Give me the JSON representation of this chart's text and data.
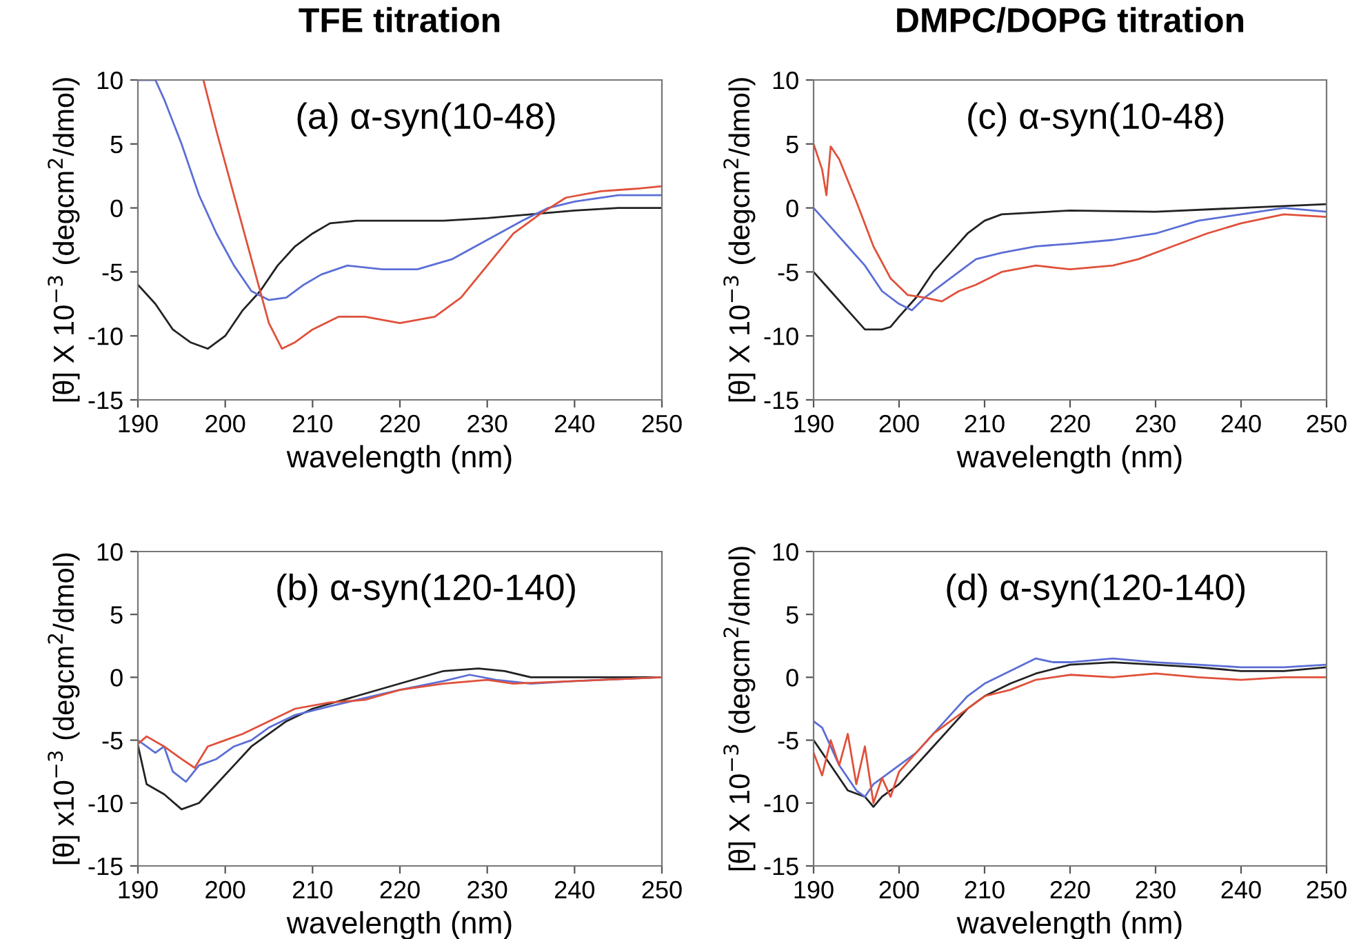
{
  "chart_data": [
    {
      "type": "line",
      "title": "TFE titration",
      "annotations": [
        "(a) α-syn(10-48)"
      ],
      "xlabel": "wavelength (nm)",
      "ylabel": "[θ] X 10$^{−3}$ (degcm$^{2}$/dmol)",
      "xlim": [
        190,
        250
      ],
      "ylim": [
        -15,
        10
      ],
      "xticks": [
        190,
        200,
        210,
        220,
        230,
        240,
        250
      ],
      "yticks": [
        -15,
        -10,
        -5,
        0,
        5,
        10
      ],
      "grid": false,
      "legend": false,
      "series": [
        {
          "color": "#222222",
          "x": [
            190,
            192,
            194,
            196,
            198,
            200,
            202,
            204,
            206,
            208,
            210,
            212,
            215,
            220,
            225,
            230,
            235,
            240,
            245,
            250
          ],
          "values": [
            -6,
            -7.5,
            -9.5,
            -10.5,
            -11,
            -10,
            -8,
            -6.5,
            -4.5,
            -3,
            -2,
            -1.2,
            -1,
            -1,
            -1,
            -0.8,
            -0.5,
            -0.2,
            0,
            0
          ]
        },
        {
          "color": "#5b6ed6",
          "x": [
            190,
            192,
            193,
            195,
            197,
            199,
            201,
            203,
            205,
            207,
            209,
            211,
            214,
            218,
            222,
            226,
            230,
            234,
            237,
            240,
            245,
            250
          ],
          "values": [
            10,
            10,
            8.5,
            5,
            1,
            -2,
            -4.5,
            -6.5,
            -7.2,
            -7,
            -6,
            -5.2,
            -4.5,
            -4.8,
            -4.8,
            -4,
            -2.5,
            -1,
            0,
            0.5,
            1,
            1
          ]
        },
        {
          "color": "#e0503a",
          "x": [
            197.5,
            199,
            201,
            203,
            205,
            206.5,
            208,
            210,
            213,
            216,
            220,
            224,
            227,
            230,
            233,
            236,
            239,
            243,
            247,
            250
          ],
          "values": [
            10,
            6,
            1,
            -4,
            -9,
            -11,
            -10.5,
            -9.5,
            -8.5,
            -8.5,
            -9,
            -8.5,
            -7,
            -4.5,
            -2,
            -0.5,
            0.8,
            1.3,
            1.5,
            1.7
          ]
        }
      ]
    },
    {
      "type": "line",
      "title": "DMPC/DOPG titration",
      "annotations": [
        "(c) α-syn(10-48)"
      ],
      "xlabel": "wavelength (nm)",
      "ylabel": "[θ] X 10$^{−3}$ (degcm$^{2}$/dmol)",
      "xlim": [
        190,
        250
      ],
      "ylim": [
        -15,
        10
      ],
      "xticks": [
        190,
        200,
        210,
        220,
        230,
        240,
        250
      ],
      "yticks": [
        -15,
        -10,
        -5,
        0,
        5,
        10
      ],
      "grid": false,
      "legend": false,
      "series": [
        {
          "color": "#222222",
          "x": [
            190,
            192,
            194,
            196,
            198,
            199,
            200,
            202,
            204,
            206,
            208,
            210,
            212,
            220,
            230,
            240,
            250
          ],
          "values": [
            -5,
            -6.5,
            -8,
            -9.5,
            -9.5,
            -9.3,
            -8.5,
            -7,
            -5,
            -3.5,
            -2,
            -1,
            -0.5,
            -0.2,
            -0.3,
            0,
            0.3
          ]
        },
        {
          "color": "#5b6ed6",
          "x": [
            190,
            192,
            194,
            196,
            198,
            200,
            201.5,
            203,
            205,
            207,
            209,
            212,
            216,
            220,
            225,
            230,
            235,
            240,
            245,
            250
          ],
          "values": [
            0,
            -1.5,
            -3,
            -4.5,
            -6.5,
            -7.5,
            -8,
            -7,
            -6,
            -5,
            -4,
            -3.5,
            -3,
            -2.8,
            -2.5,
            -2,
            -1,
            -0.5,
            0,
            -0.3
          ]
        },
        {
          "color": "#e0503a",
          "x": [
            190,
            191,
            191.5,
            192,
            193,
            195,
            197,
            199,
            201,
            203,
            205,
            207,
            209,
            212,
            216,
            220,
            225,
            228,
            232,
            236,
            240,
            245,
            250
          ],
          "values": [
            5,
            3,
            1,
            4.8,
            3.8,
            0.5,
            -3,
            -5.5,
            -6.8,
            -7,
            -7.3,
            -6.5,
            -6,
            -5,
            -4.5,
            -4.8,
            -4.5,
            -4,
            -3,
            -2,
            -1.2,
            -0.5,
            -0.7
          ]
        }
      ]
    },
    {
      "type": "line",
      "annotations": [
        "(b) α-syn(120-140)"
      ],
      "xlabel": "wavelength (nm)",
      "ylabel": "[θ] x10$^{−3}$ (degcm$^{2}$/dmol)",
      "xlim": [
        190,
        250
      ],
      "ylim": [
        -15,
        10
      ],
      "xticks": [
        190,
        200,
        210,
        220,
        230,
        240,
        250
      ],
      "yticks": [
        -15,
        -10,
        -5,
        0,
        5,
        10
      ],
      "grid": false,
      "legend": false,
      "series": [
        {
          "color": "#222222",
          "x": [
            190,
            191,
            193,
            195,
            197,
            199,
            201,
            203,
            205,
            207,
            210,
            215,
            220,
            225,
            229,
            232,
            235,
            240,
            250
          ],
          "values": [
            -5.4,
            -8.5,
            -9.3,
            -10.5,
            -10,
            -8.5,
            -7,
            -5.5,
            -4.5,
            -3.5,
            -2.5,
            -1.5,
            -0.5,
            0.5,
            0.7,
            0.5,
            0,
            0,
            0
          ]
        },
        {
          "color": "#5b6ed6",
          "x": [
            190,
            192,
            193,
            194,
            195.5,
            197,
            199,
            201,
            203,
            205,
            208,
            212,
            220,
            225,
            228,
            231,
            235,
            240,
            250
          ],
          "values": [
            -5,
            -6,
            -5.5,
            -7.5,
            -8.3,
            -7,
            -6.5,
            -5.5,
            -5,
            -4,
            -3,
            -2.3,
            -1,
            -0.3,
            0.2,
            -0.2,
            -0.5,
            -0.3,
            0
          ]
        },
        {
          "color": "#e0503a",
          "x": [
            190,
            191,
            193,
            195,
            196.5,
            198,
            200,
            202,
            205,
            208,
            212,
            216,
            220,
            225,
            230,
            233,
            240,
            250
          ],
          "values": [
            -5.3,
            -4.7,
            -5.5,
            -6.5,
            -7.2,
            -5.5,
            -5,
            -4.5,
            -3.5,
            -2.5,
            -2,
            -1.8,
            -1,
            -0.5,
            -0.2,
            -0.5,
            -0.3,
            0
          ]
        }
      ]
    },
    {
      "type": "line",
      "annotations": [
        "(d) α-syn(120-140)"
      ],
      "xlabel": "wavelength (nm)",
      "ylabel": "[θ] X 10$^{−3}$ (degcm$^{2}$/dmol)",
      "xlim": [
        190,
        250
      ],
      "ylim": [
        -15,
        10
      ],
      "xticks": [
        190,
        200,
        210,
        220,
        230,
        240,
        250
      ],
      "yticks": [
        -15,
        -10,
        -5,
        0,
        5,
        10
      ],
      "grid": false,
      "legend": false,
      "series": [
        {
          "color": "#222222",
          "x": [
            190,
            192,
            194,
            196,
            197,
            198,
            200,
            202,
            204,
            206,
            208,
            210,
            213,
            216,
            220,
            225,
            230,
            235,
            240,
            245,
            250
          ],
          "values": [
            -5,
            -7,
            -9,
            -9.5,
            -10.3,
            -9.5,
            -8.5,
            -7,
            -5.5,
            -4,
            -2.5,
            -1.5,
            -0.5,
            0.3,
            1,
            1.2,
            1,
            0.8,
            0.5,
            0.5,
            0.8
          ]
        },
        {
          "color": "#5b6ed6",
          "x": [
            190,
            191,
            193,
            195,
            196,
            197,
            198,
            200,
            202,
            204,
            206,
            208,
            210,
            213,
            216,
            218,
            220,
            225,
            230,
            235,
            240,
            245,
            250
          ],
          "values": [
            -3.5,
            -4,
            -7,
            -9,
            -9.5,
            -8.5,
            -8,
            -7,
            -6,
            -4.5,
            -3,
            -1.5,
            -0.5,
            0.5,
            1.5,
            1.2,
            1.2,
            1.5,
            1.2,
            1,
            0.8,
            0.8,
            1
          ]
        },
        {
          "color": "#e0503a",
          "x": [
            190,
            191,
            192,
            193,
            194,
            195,
            196,
            197,
            198,
            199,
            200,
            202,
            204,
            206,
            208,
            210,
            213,
            216,
            220,
            225,
            230,
            235,
            240,
            245,
            250
          ],
          "values": [
            -6,
            -7.8,
            -5,
            -7,
            -4.5,
            -8.5,
            -5.5,
            -10,
            -8,
            -9.5,
            -7.5,
            -6,
            -4.5,
            -3.5,
            -2.5,
            -1.5,
            -1,
            -0.2,
            0.2,
            0,
            0.3,
            0,
            -0.2,
            0,
            0
          ]
        }
      ]
    }
  ]
}
